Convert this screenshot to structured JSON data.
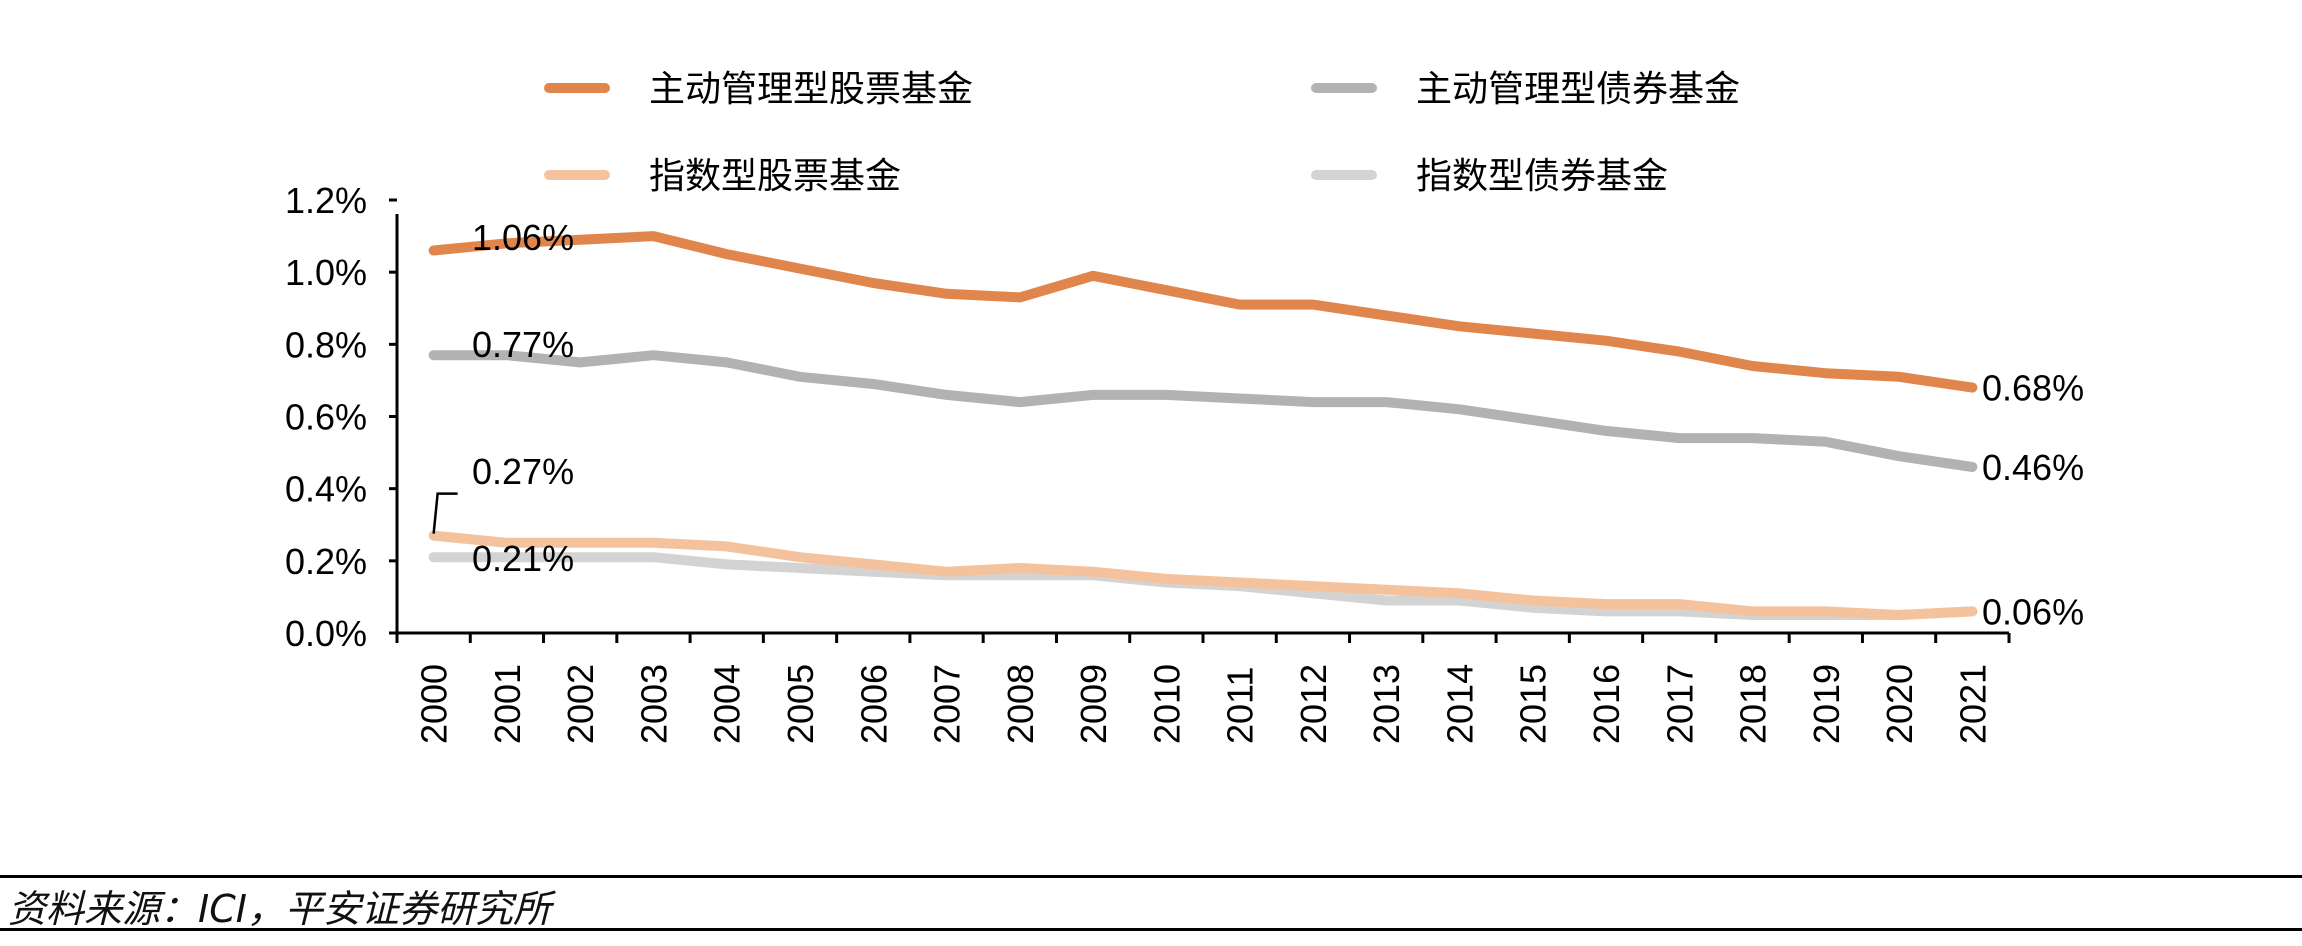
{
  "chart_data": {
    "type": "line",
    "x": [
      "2000",
      "2001",
      "2002",
      "2003",
      "2004",
      "2005",
      "2006",
      "2007",
      "2008",
      "2009",
      "2010",
      "2011",
      "2012",
      "2013",
      "2014",
      "2015",
      "2016",
      "2017",
      "2018",
      "2019",
      "2020",
      "2021"
    ],
    "series": [
      {
        "name": "主动管理型股票基金",
        "color": "#E0864D",
        "values": [
          1.06,
          1.08,
          1.09,
          1.1,
          1.05,
          1.01,
          0.97,
          0.94,
          0.93,
          0.99,
          0.95,
          0.91,
          0.91,
          0.88,
          0.85,
          0.83,
          0.81,
          0.78,
          0.74,
          0.72,
          0.71,
          0.68
        ]
      },
      {
        "name": "主动管理型债券基金",
        "color": "#B2B2B2",
        "values": [
          0.77,
          0.77,
          0.75,
          0.77,
          0.75,
          0.71,
          0.69,
          0.66,
          0.64,
          0.66,
          0.66,
          0.65,
          0.64,
          0.64,
          0.62,
          0.59,
          0.56,
          0.54,
          0.54,
          0.53,
          0.49,
          0.46
        ]
      },
      {
        "name": "指数型股票基金",
        "color": "#F4C39D",
        "values": [
          0.27,
          0.25,
          0.25,
          0.25,
          0.24,
          0.21,
          0.19,
          0.17,
          0.18,
          0.17,
          0.15,
          0.14,
          0.13,
          0.12,
          0.11,
          0.09,
          0.08,
          0.08,
          0.06,
          0.06,
          0.05,
          0.06
        ]
      },
      {
        "name": "指数型债券基金",
        "color": "#D3D3D3",
        "values": [
          0.21,
          0.21,
          0.21,
          0.21,
          0.19,
          0.18,
          0.17,
          0.16,
          0.16,
          0.16,
          0.14,
          0.13,
          0.11,
          0.09,
          0.09,
          0.07,
          0.06,
          0.06,
          0.05,
          0.05,
          0.05,
          0.06
        ]
      }
    ],
    "ylim": [
      0,
      1.2
    ],
    "yticks": [
      "0.0%",
      "0.2%",
      "0.4%",
      "0.6%",
      "0.8%",
      "1.0%",
      "1.2%"
    ],
    "annotations": {
      "start": [
        "1.06%",
        "0.77%",
        "0.27%",
        "0.21%"
      ],
      "end": [
        "0.68%",
        "0.46%",
        "0.06%"
      ]
    },
    "legend_position": "top",
    "grid": false
  },
  "footer": {
    "source": "资料来源：ICI，平安证券研究所"
  }
}
